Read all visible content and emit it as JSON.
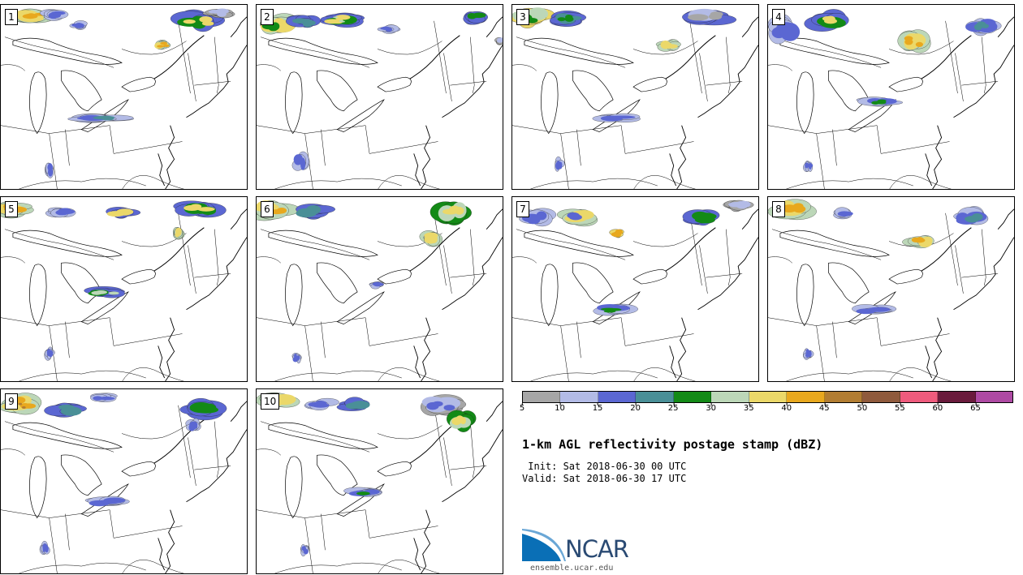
{
  "panels": [
    {
      "label": "1"
    },
    {
      "label": "2"
    },
    {
      "label": "3"
    },
    {
      "label": "4"
    },
    {
      "label": "5"
    },
    {
      "label": "6"
    },
    {
      "label": "7"
    },
    {
      "label": "8"
    },
    {
      "label": "9"
    },
    {
      "label": "10"
    }
  ],
  "colorbar": {
    "colors": [
      "#a6a6a6",
      "#b3bbe6",
      "#5b67d2",
      "#4a8f97",
      "#138a16",
      "#bcd7b8",
      "#ebd869",
      "#e8a81e",
      "#b27d32",
      "#8f5a3c",
      "#ef5b7d",
      "#6a1b3c",
      "#ae4aa3"
    ],
    "ticks": [
      "5",
      "10",
      "15",
      "20",
      "25",
      "30",
      "35",
      "40",
      "45",
      "50",
      "55",
      "60",
      "65"
    ]
  },
  "title": "1-km AGL reflectivity postage stamp (dBZ)",
  "init": " Init: Sat 2018-06-30 00 UTC",
  "valid": "Valid: Sat 2018-06-30 17 UTC",
  "logo": {
    "text": "NCAR",
    "url": "ensemble.ucar.edu",
    "colors": [
      "#0a6fb6",
      "#2a4a73"
    ]
  }
}
